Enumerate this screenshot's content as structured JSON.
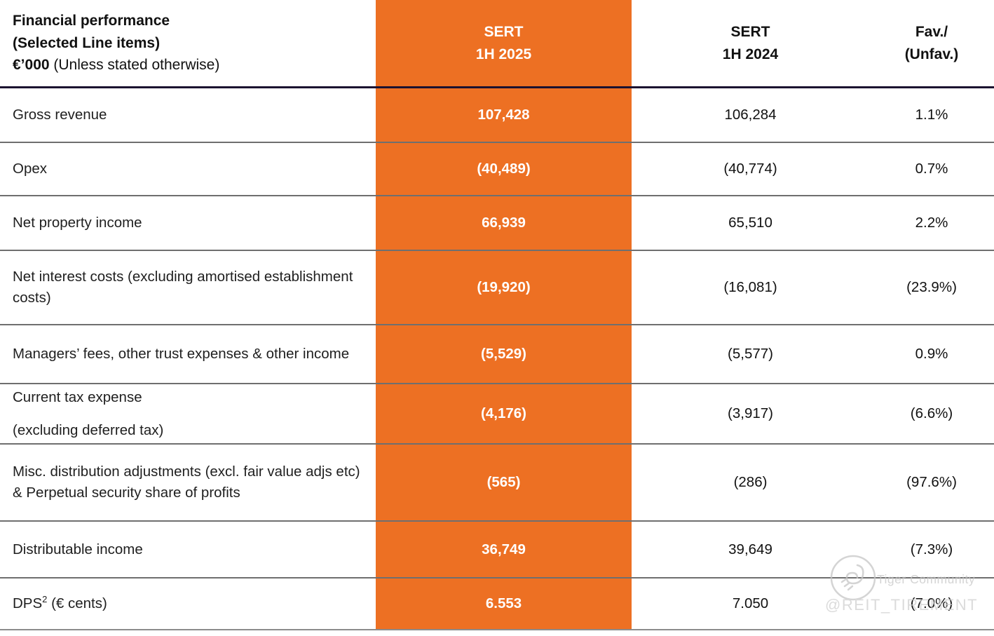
{
  "table": {
    "header": {
      "title_line1": "Financial performance",
      "title_line2": "(Selected Line items)",
      "title_line3_bold": "€’000",
      "title_line3_regular": " (Unless stated otherwise)",
      "col_sert_2025_line1": "SERT",
      "col_sert_2025_line2": "1H 2025",
      "col_sert_2024_line1": "SERT",
      "col_sert_2024_line2": "1H 2024",
      "col_fav_line1": "Fav./",
      "col_fav_line2": "(Unfav.)"
    },
    "rows": [
      {
        "label": "Gross revenue",
        "sert_2025": "107,428",
        "sert_2024": "106,284",
        "fav_unfav": "1.1%"
      },
      {
        "label": "Opex",
        "sert_2025": "(40,489)",
        "sert_2024": "(40,774)",
        "fav_unfav": "0.7%"
      },
      {
        "label": "Net property income",
        "sert_2025": "66,939",
        "sert_2024": "65,510",
        "fav_unfav": "2.2%"
      },
      {
        "label": "Net interest costs (excluding amortised establishment costs)",
        "sert_2025": "(19,920)",
        "sert_2024": "(16,081)",
        "fav_unfav": "(23.9%)"
      },
      {
        "label": "Managers’ fees, other trust expenses & other income",
        "sert_2025": "(5,529)",
        "sert_2024": "(5,577)",
        "fav_unfav": "0.9%"
      },
      {
        "label": "Current tax expense",
        "label_line2": "(excluding deferred tax)",
        "sert_2025": "(4,176)",
        "sert_2024": "(3,917)",
        "fav_unfav": "(6.6%)"
      },
      {
        "label": "Misc. distribution adjustments (excl. fair value adjs etc) & Perpetual security share of profits",
        "sert_2025": "(565)",
        "sert_2024": "(286)",
        "fav_unfav": "(97.6%)"
      },
      {
        "label": "Distributable income",
        "sert_2025": "36,749",
        "sert_2024": "39,649",
        "fav_unfav": "(7.3%)"
      },
      {
        "label_prefix": "DPS",
        "label_sup": "2",
        "label_suffix": " (€ cents)",
        "sert_2025": "6.553",
        "sert_2024": "7.050",
        "fav_unfav": "(7.0%)"
      }
    ]
  },
  "watermark": {
    "community": "Tiger Community",
    "handle": "@REIT_TIREMENT"
  },
  "colors": {
    "accent_orange": "#ED7023",
    "header_divider": "#1B1230",
    "row_divider": "#6F6F6F",
    "bottom_border": "#8C8C8C",
    "watermark_gray": "#C6C6C6"
  }
}
